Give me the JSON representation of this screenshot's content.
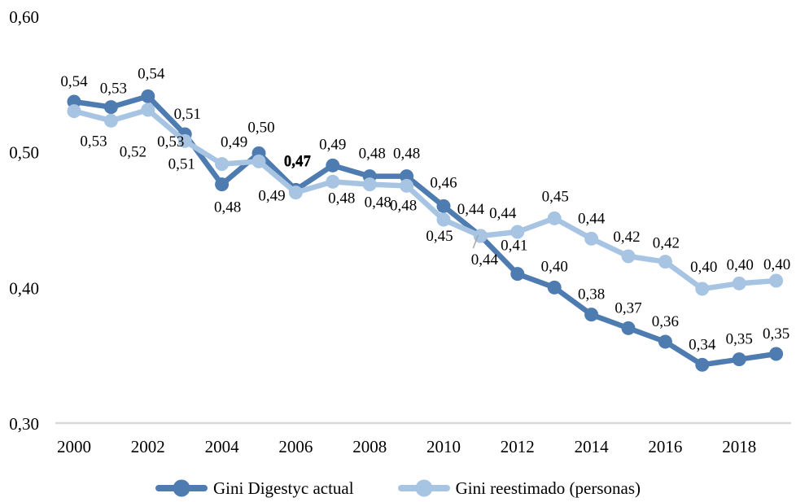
{
  "chart_data": {
    "type": "line",
    "title": "",
    "xlabel": "",
    "ylabel": "",
    "x": [
      2000,
      2001,
      2002,
      2003,
      2004,
      2005,
      2006,
      2007,
      2008,
      2009,
      2010,
      2011,
      2012,
      2013,
      2014,
      2015,
      2016,
      2017,
      2018,
      2019
    ],
    "x_tick_labels": [
      "2000",
      "2002",
      "2004",
      "2006",
      "2008",
      "2010",
      "2012",
      "2014",
      "2016",
      "2018"
    ],
    "y_ticks": [
      {
        "value": 0.6,
        "label": "0,60"
      },
      {
        "value": 0.5,
        "label": "0,50"
      },
      {
        "value": 0.4,
        "label": "0,40"
      },
      {
        "value": 0.3,
        "label": "0,30"
      }
    ],
    "ylim": [
      0.3,
      0.6
    ],
    "grid": false,
    "decimal_separator": ",",
    "legend_position": "bottom",
    "series": [
      {
        "name": "Gini Digestyc actual",
        "color": "#4E7CB0",
        "values": [
          0.54,
          0.53,
          0.54,
          0.51,
          0.48,
          0.5,
          0.47,
          0.49,
          0.48,
          0.48,
          0.46,
          0.44,
          0.41,
          0.4,
          0.38,
          0.37,
          0.36,
          0.34,
          0.35,
          0.35
        ],
        "labels": [
          "0,54",
          "0,53",
          "0,54",
          "0,51",
          "0,48",
          "0,50",
          "0,47",
          "0,49",
          "0,48",
          "0,48",
          "0,46",
          "0,44",
          "0,41",
          "0,40",
          "0,38",
          "0,37",
          "0,36",
          "0,34",
          "0,35",
          "0,35"
        ],
        "render_values": [
          0.537,
          0.533,
          0.541,
          0.513,
          0.476,
          0.499,
          0.472,
          0.49,
          0.482,
          0.482,
          0.46,
          0.438,
          0.41,
          0.4,
          0.38,
          0.37,
          0.36,
          0.343,
          0.347,
          0.351
        ],
        "label_side": [
          "a",
          "a",
          "a",
          "a",
          "b",
          "a",
          "a",
          "a",
          "a",
          "a",
          "a",
          "a",
          "a",
          "a",
          "a",
          "a",
          "a",
          "a",
          "a",
          "a"
        ],
        "label_dx": [
          0,
          3,
          4,
          3,
          7,
          3,
          2,
          0,
          3,
          0,
          0,
          -12,
          -4,
          0,
          0,
          0,
          0,
          0,
          0,
          0
        ],
        "label_dy": [
          0,
          2,
          -3,
          0,
          6,
          -7,
          -10,
          -1,
          -3,
          -3,
          -4,
          -8,
          -10,
          -1,
          0,
          0,
          0,
          0,
          0,
          0
        ],
        "bold_labels": [
          6
        ]
      },
      {
        "name": "Gini reestimado (personas)",
        "color": "#A7C4E3",
        "values": [
          0.53,
          0.52,
          0.53,
          0.51,
          0.49,
          0.49,
          0.47,
          0.48,
          0.48,
          0.48,
          0.45,
          0.44,
          0.44,
          0.45,
          0.44,
          0.42,
          0.42,
          0.4,
          0.4,
          0.4
        ],
        "labels": [
          "0,53",
          "0,52",
          "0,53",
          "0,51",
          "0,49",
          "0,49",
          "0,47",
          "0,48",
          "0,48",
          "0,48",
          "0,45",
          "0,44",
          "0,44",
          "0,45",
          "0,44",
          "0,42",
          "0,42",
          "0,40",
          "0,40",
          "0,40"
        ],
        "render_values": [
          0.53,
          0.523,
          0.531,
          0.508,
          0.491,
          0.493,
          0.47,
          0.478,
          0.476,
          0.475,
          0.45,
          0.438,
          0.441,
          0.451,
          0.436,
          0.423,
          0.419,
          0.399,
          0.403,
          0.405
        ],
        "label_side": [
          "b",
          "b",
          "b",
          "b",
          "a",
          "b",
          "a",
          "b",
          "b",
          "b",
          "b",
          "b",
          "a",
          "a",
          "a",
          "a",
          "a",
          "a",
          "a",
          "a"
        ],
        "label_dx": [
          24,
          27,
          28,
          -4,
          15,
          16,
          2,
          11,
          10,
          -4,
          -5,
          5,
          -18,
          1,
          0,
          -2,
          1,
          2,
          1,
          1
        ],
        "label_dy": [
          15,
          16,
          17,
          6,
          -2,
          20,
          -14,
          -2,
          0,
          2,
          -2,
          7,
          2,
          -2,
          0,
          1,
          2,
          -2,
          2,
          5
        ],
        "bold_labels": [
          6
        ],
        "leader_label_index": 11
      }
    ]
  },
  "legend": {
    "items": [
      {
        "label": "Gini Digestyc actual"
      },
      {
        "label": "Gini reestimado (personas)"
      }
    ]
  },
  "colors": {
    "axis_line": "#D9D9D9",
    "leader_line": "#A6A6A6",
    "text": "#000000"
  }
}
